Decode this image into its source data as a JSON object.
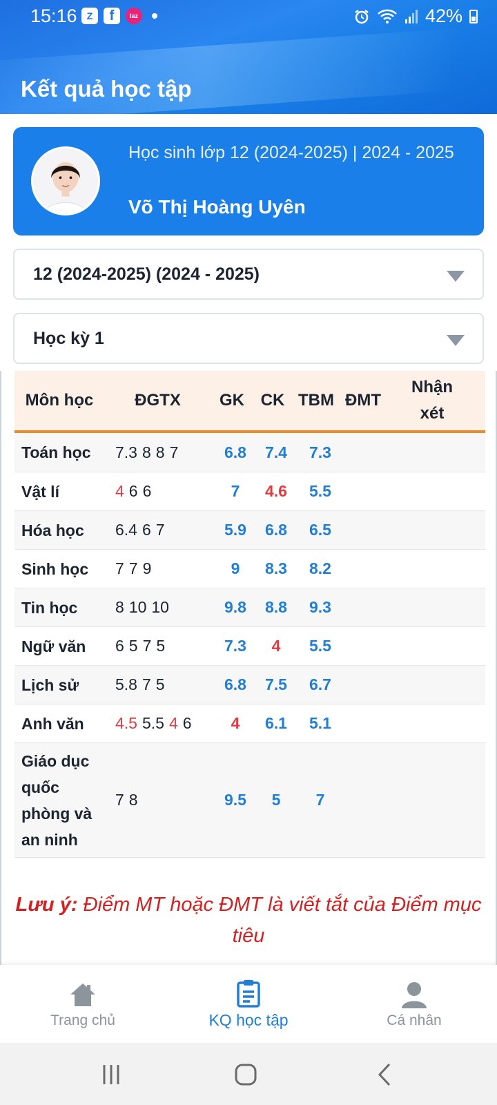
{
  "status_bar": {
    "time": "15:16",
    "app_icons": [
      "zalo-icon",
      "facebook-icon",
      "lazada-icon"
    ],
    "battery": "42%"
  },
  "header": {
    "title": "Kết quả học tập"
  },
  "profile": {
    "class_label": "Học sinh lớp 12 (2024-2025) | 2024 - 2025",
    "name": "Võ Thị Hoàng Uyên"
  },
  "filters": {
    "year_value": "12 (2024-2025) (2024 - 2025)",
    "term_value": "Học kỳ 1"
  },
  "table": {
    "headers": {
      "subject": "Môn học",
      "dgtx": "ĐGTX",
      "gk": "GK",
      "ck": "CK",
      "tbm": "TBM",
      "dmt": "ĐMT",
      "comment": "Nhận xét"
    },
    "rows": [
      {
        "subject": "Toán học",
        "dgtx": [
          {
            "v": "7.3",
            "low": false
          },
          {
            "v": "8",
            "low": false
          },
          {
            "v": "8",
            "low": false
          },
          {
            "v": "7",
            "low": false
          }
        ],
        "gk": {
          "v": "6.8",
          "low": false
        },
        "ck": {
          "v": "7.4",
          "low": false
        },
        "tbm": {
          "v": "7.3",
          "low": false
        }
      },
      {
        "subject": "Vật lí",
        "dgtx": [
          {
            "v": "4",
            "low": true
          },
          {
            "v": "6",
            "low": false
          },
          {
            "v": "6",
            "low": false
          }
        ],
        "gk": {
          "v": "7",
          "low": false
        },
        "ck": {
          "v": "4.6",
          "low": true
        },
        "tbm": {
          "v": "5.5",
          "low": false
        }
      },
      {
        "subject": "Hóa học",
        "dgtx": [
          {
            "v": "6.4",
            "low": false
          },
          {
            "v": "6",
            "low": false
          },
          {
            "v": "7",
            "low": false
          }
        ],
        "gk": {
          "v": "5.9",
          "low": false
        },
        "ck": {
          "v": "6.8",
          "low": false
        },
        "tbm": {
          "v": "6.5",
          "low": false
        }
      },
      {
        "subject": "Sinh học",
        "dgtx": [
          {
            "v": "7",
            "low": false
          },
          {
            "v": "7",
            "low": false
          },
          {
            "v": "9",
            "low": false
          }
        ],
        "gk": {
          "v": "9",
          "low": false
        },
        "ck": {
          "v": "8.3",
          "low": false
        },
        "tbm": {
          "v": "8.2",
          "low": false
        }
      },
      {
        "subject": "Tin học",
        "dgtx": [
          {
            "v": "8",
            "low": false
          },
          {
            "v": "10",
            "low": false
          },
          {
            "v": "10",
            "low": false
          }
        ],
        "gk": {
          "v": "9.8",
          "low": false
        },
        "ck": {
          "v": "8.8",
          "low": false
        },
        "tbm": {
          "v": "9.3",
          "low": false
        }
      },
      {
        "subject": "Ngữ văn",
        "dgtx": [
          {
            "v": "6",
            "low": false
          },
          {
            "v": "5",
            "low": false
          },
          {
            "v": "7",
            "low": false
          },
          {
            "v": "5",
            "low": false
          }
        ],
        "gk": {
          "v": "7.3",
          "low": false
        },
        "ck": {
          "v": "4",
          "low": true
        },
        "tbm": {
          "v": "5.5",
          "low": false
        }
      },
      {
        "subject": "Lịch sử",
        "dgtx": [
          {
            "v": "5.8",
            "low": false
          },
          {
            "v": "7",
            "low": false
          },
          {
            "v": "5",
            "low": false
          }
        ],
        "gk": {
          "v": "6.8",
          "low": false
        },
        "ck": {
          "v": "7.5",
          "low": false
        },
        "tbm": {
          "v": "6.7",
          "low": false
        }
      },
      {
        "subject": "Anh văn",
        "dgtx": [
          {
            "v": "4.5",
            "low": true
          },
          {
            "v": "5.5",
            "low": false
          },
          {
            "v": "4",
            "low": true
          },
          {
            "v": "6",
            "low": false
          }
        ],
        "gk": {
          "v": "4",
          "low": true
        },
        "ck": {
          "v": "6.1",
          "low": false
        },
        "tbm": {
          "v": "5.1",
          "low": false
        }
      },
      {
        "subject": "Giáo dục quốc phòng và an ninh",
        "dgtx": [
          {
            "v": "7",
            "low": false
          },
          {
            "v": "8",
            "low": false
          }
        ],
        "gk": {
          "v": "9.5",
          "low": false
        },
        "ck": {
          "v": "5",
          "low": false
        },
        "tbm": {
          "v": "7",
          "low": false
        }
      }
    ]
  },
  "note": {
    "label": "Lưu ý:",
    "text": " Điểm MT hoặc ĐMT là viết tắt của Điểm mục tiêu"
  },
  "bottom_nav": {
    "home": "Trang chủ",
    "results": "KQ học tập",
    "profile": "Cá nhân"
  },
  "colors": {
    "primary": "#1a7fe8",
    "score_blue": "#1f7fd8",
    "score_red": "#e4393f",
    "header_accent": "#e98a2d",
    "note_red": "#d42020"
  }
}
